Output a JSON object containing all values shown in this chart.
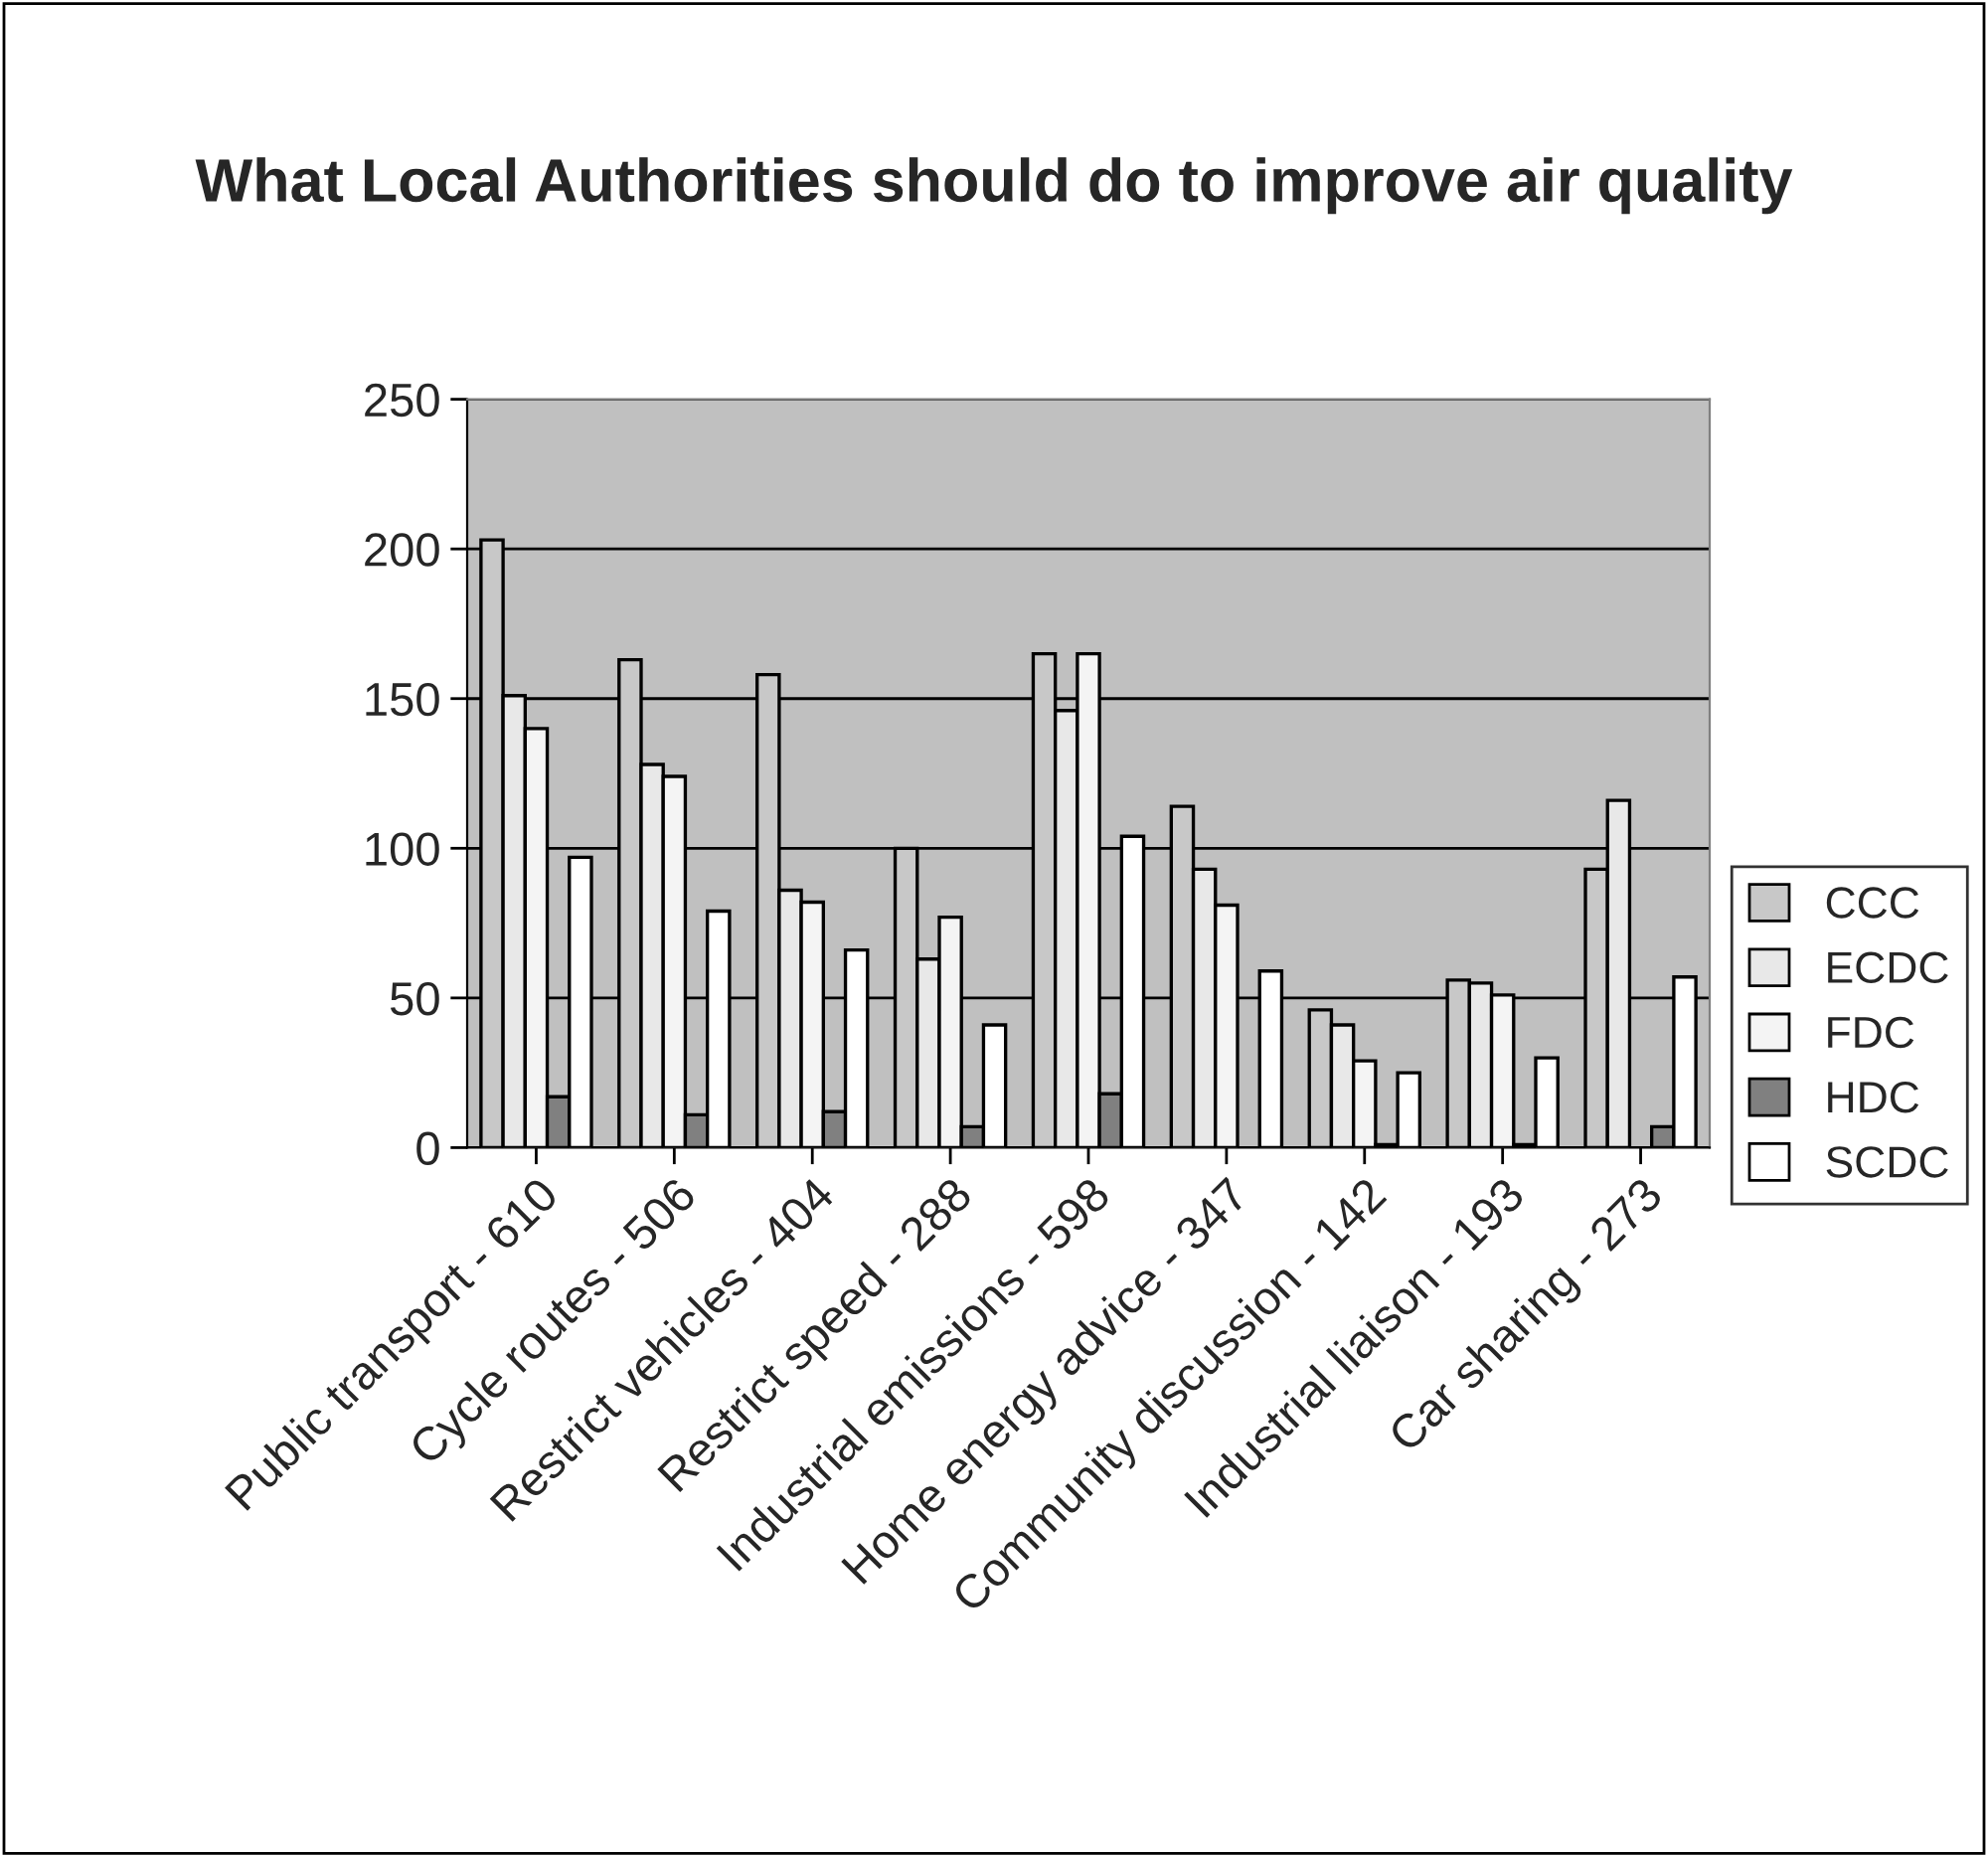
{
  "chart_data": {
    "type": "bar",
    "title": "What Local Authorities should do to improve air quality",
    "categories": [
      "Public transport - 610",
      "Cycle routes - 506",
      "Restrict vehicles - 404",
      "Restrict speed - 288",
      "Industrial emissions - 598",
      "Home energy advice - 347",
      "Community discussion - 142",
      "Industrial liaison - 193",
      "Car sharing - 273"
    ],
    "series": [
      {
        "name": "CCC",
        "color": "#c8c8c8",
        "values": [
          203,
          163,
          158,
          100,
          165,
          114,
          46,
          56,
          93
        ]
      },
      {
        "name": "ECDC",
        "color": "#e8e8e8",
        "values": [
          151,
          128,
          86,
          63,
          146,
          93,
          41,
          55,
          116
        ]
      },
      {
        "name": "FDC",
        "color": "#f4f4f4",
        "values": [
          140,
          124,
          82,
          77,
          165,
          81,
          29,
          51,
          null
        ]
      },
      {
        "name": "HDC",
        "color": "#808080",
        "values": [
          17,
          11,
          12,
          7,
          18,
          null,
          1,
          1,
          7
        ]
      },
      {
        "name": "SCDC",
        "color": "#ffffff",
        "values": [
          97,
          79,
          66,
          41,
          104,
          59,
          25,
          30,
          57
        ]
      }
    ],
    "ylim": [
      0,
      250
    ],
    "yticks": [
      0,
      50,
      100,
      150,
      200,
      250
    ],
    "grid": "y",
    "legend": "right"
  }
}
